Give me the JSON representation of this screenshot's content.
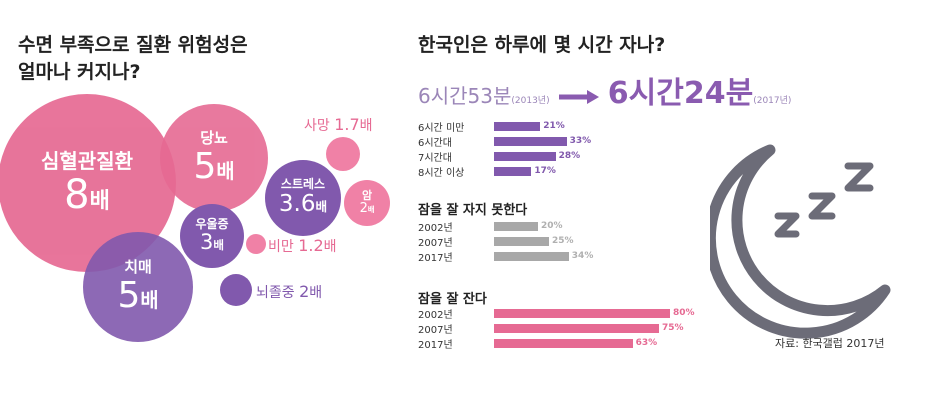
{
  "left_title": {
    "line1": "수면 부족으로 질환 위험성은",
    "line2": "얼마나 커지나?"
  },
  "right_title": "한국인은 하루에 몇 시간 자나?",
  "sleep_time": {
    "old": "6시간53분",
    "old_year": "(2013년)",
    "new": "6시간24분",
    "new_year": "(2017년)"
  },
  "source": "자료: 한국갤럽 2017년",
  "colors": {
    "pink": "#e66a93",
    "light_pink": "#f081a6",
    "purple": "#8159ad",
    "gray": "#a8a8a8",
    "gray_text": "#b0b0b0",
    "moon": "#6c6c78"
  },
  "chart_data": [
    {
      "type": "bubble",
      "unit": "배",
      "items": [
        {
          "label": "심혈관질환",
          "value": 8,
          "display": "8",
          "color": "pink"
        },
        {
          "label": "당뇨",
          "value": 5,
          "display": "5",
          "color": "pink"
        },
        {
          "label": "치매",
          "value": 5,
          "display": "5",
          "color": "purple"
        },
        {
          "label": "스트레스",
          "value": 3.6,
          "display": "3.6",
          "color": "purple"
        },
        {
          "label": "우울증",
          "value": 3,
          "display": "3",
          "color": "purple"
        },
        {
          "label": "암",
          "value": 2,
          "display": "2",
          "color": "light_pink"
        },
        {
          "label": "사망",
          "value": 1.7,
          "display": "1.7",
          "color": "light_pink"
        },
        {
          "label": "비만",
          "value": 1.2,
          "display": "1.2",
          "color": "light_pink"
        },
        {
          "label": "뇌졸중",
          "value": 2,
          "display": "2",
          "color": "purple"
        }
      ]
    },
    {
      "type": "bar",
      "categories": [
        "6시간 미만",
        "6시간대",
        "7시간대",
        "8시간 이상"
      ],
      "values": [
        21,
        33,
        28,
        17
      ],
      "labels": [
        "21%",
        "33%",
        "28%",
        "17%"
      ]
    },
    {
      "type": "bar",
      "title": "잠을 잘 자지 못한다",
      "categories": [
        "2002년",
        "2007년",
        "2017년"
      ],
      "values": [
        20,
        25,
        34
      ],
      "labels": [
        "20%",
        "25%",
        "34%"
      ]
    },
    {
      "type": "bar",
      "title": "잠을 잘 잔다",
      "categories": [
        "2002년",
        "2007년",
        "2017년"
      ],
      "values": [
        80,
        75,
        63
      ],
      "labels": [
        "80%",
        "75%",
        "63%"
      ]
    }
  ]
}
